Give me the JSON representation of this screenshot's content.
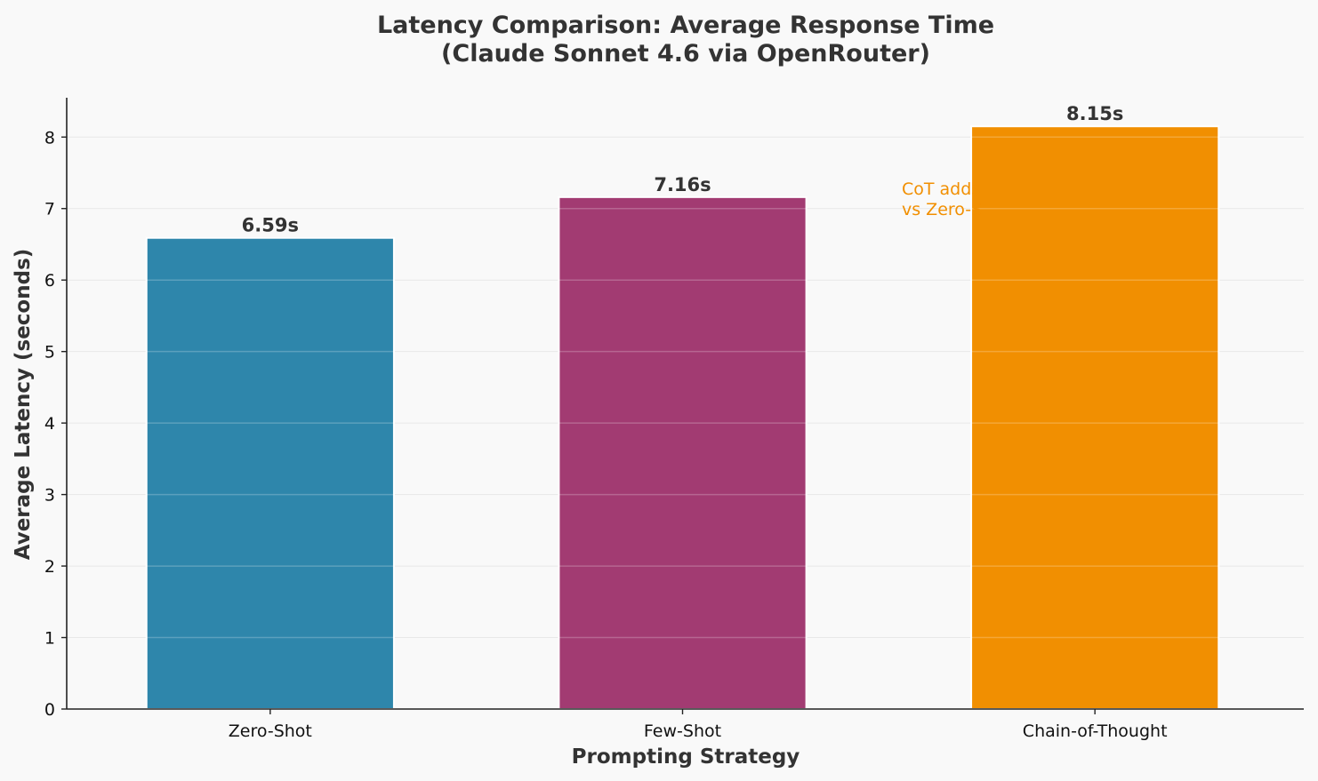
{
  "chart_data": {
    "type": "bar",
    "title_lines": [
      "Latency Comparison: Average Response Time",
      "(Claude Sonnet 4.6 via OpenRouter)"
    ],
    "xlabel": "Prompting Strategy",
    "ylabel": "Average Latency (seconds)",
    "categories": [
      "Zero-Shot",
      "Few-Shot",
      "Chain-of-Thought"
    ],
    "values": [
      6.59,
      7.16,
      8.15
    ],
    "value_labels": [
      "6.59s",
      "7.16s",
      "8.15s"
    ],
    "colors": [
      "#2e86ab",
      "#a23b72",
      "#f18f01"
    ],
    "ylim": [
      0,
      8.55
    ],
    "yticks": [
      0,
      1,
      2,
      3,
      4,
      5,
      6,
      7,
      8
    ],
    "grid": true,
    "annotation": {
      "lines": [
        "CoT adds",
        "vs Zero-S"
      ],
      "color": "#f18f01"
    }
  }
}
